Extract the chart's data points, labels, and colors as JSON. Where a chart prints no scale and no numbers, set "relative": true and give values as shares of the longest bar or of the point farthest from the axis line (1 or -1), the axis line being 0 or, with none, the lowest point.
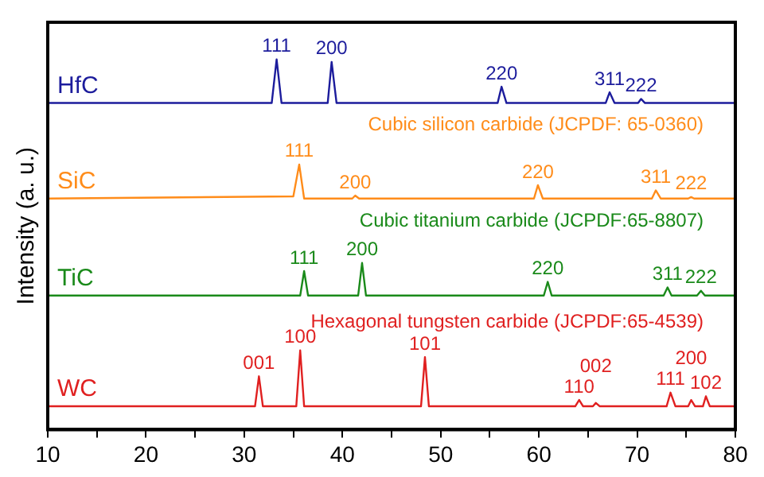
{
  "chart_data": {
    "type": "line",
    "relative": true,
    "ylabel": "Intensity (a. u.)",
    "xlim": [
      10,
      80
    ],
    "xticks": [
      10,
      {
        "value": 15,
        "label": null
      },
      20,
      {
        "value": 25,
        "label": null
      },
      30,
      {
        "value": 35,
        "label": null
      },
      40,
      {
        "value": 45,
        "label": null
      },
      50,
      {
        "value": 55,
        "label": null
      },
      60,
      {
        "value": 65,
        "label": null
      },
      70,
      {
        "value": 75,
        "label": null
      },
      80
    ],
    "marker": "none",
    "line_style": "solid",
    "series": [
      {
        "name": "HfC",
        "color": "#1c1c9c",
        "x": [
          10,
          32.8,
          33.3,
          33.8,
          38.5,
          38.9,
          39.4,
          55.8,
          56.2,
          56.7,
          66.8,
          67.2,
          67.7,
          70.1,
          70.4,
          70.8,
          80
        ],
        "values": [
          0.882,
          0.882,
          1.0,
          0.882,
          0.882,
          0.993,
          0.882,
          0.882,
          0.926,
          0.882,
          0.882,
          0.911,
          0.882,
          0.882,
          0.893,
          0.882,
          0.882
        ]
      },
      {
        "name": "SiC",
        "color": "#ff8c1a",
        "x": [
          10,
          35.0,
          35.6,
          36.1,
          41.0,
          41.3,
          41.7,
          59.5,
          59.9,
          60.4,
          71.5,
          71.9,
          72.4,
          75.2,
          75.5,
          75.8,
          80
        ],
        "values": [
          0.624,
          0.63,
          0.716,
          0.624,
          0.624,
          0.632,
          0.624,
          0.624,
          0.66,
          0.624,
          0.624,
          0.646,
          0.624,
          0.624,
          0.628,
          0.624,
          0.624
        ]
      },
      {
        "name": "TiC",
        "color": "#1a8a1a",
        "x": [
          10,
          35.7,
          36.1,
          36.5,
          41.6,
          42.0,
          42.4,
          60.5,
          60.9,
          61.3,
          72.7,
          73.1,
          73.5,
          76.1,
          76.5,
          76.9,
          80
        ],
        "values": [
          0.362,
          0.362,
          0.428,
          0.362,
          0.362,
          0.45,
          0.362,
          0.362,
          0.399,
          0.362,
          0.362,
          0.384,
          0.362,
          0.362,
          0.375,
          0.362,
          0.362
        ]
      },
      {
        "name": "WC",
        "color": "#e02020",
        "x": [
          10,
          31.1,
          31.5,
          31.9,
          35.3,
          35.7,
          36.1,
          48.0,
          48.4,
          48.8,
          63.7,
          64.1,
          64.5,
          65.5,
          65.8,
          66.2,
          73.0,
          73.4,
          73.9,
          75.2,
          75.5,
          75.9,
          76.7,
          77.0,
          77.4,
          80
        ],
        "values": [
          0.063,
          0.063,
          0.144,
          0.063,
          0.063,
          0.214,
          0.063,
          0.063,
          0.196,
          0.063,
          0.063,
          0.08,
          0.063,
          0.063,
          0.072,
          0.063,
          0.063,
          0.1,
          0.063,
          0.063,
          0.08,
          0.063,
          0.063,
          0.09,
          0.063,
          0.063
        ]
      }
    ],
    "annotations": [
      {
        "text": "111",
        "x": 33.3,
        "y": 1.0
      },
      {
        "text": "200",
        "x": 38.9,
        "y": 0.993
      },
      {
        "text": "220",
        "x": 56.2,
        "y": 0.926
      },
      {
        "text": "311",
        "x": 67.2,
        "y": 0.911
      },
      {
        "text": "222",
        "x": 70.4,
        "y": 0.893
      },
      "Cubic silicon carbide (JCPDF: 65-0360)",
      {
        "text": "111",
        "x": 35.6,
        "y": 0.716
      },
      {
        "text": "200",
        "x": 41.3,
        "y": 0.632
      },
      {
        "text": "220",
        "x": 59.9,
        "y": 0.66
      },
      {
        "text": "311",
        "x": 71.9,
        "y": 0.646
      },
      {
        "text": "222",
        "x": 75.5,
        "y": 0.628
      },
      "Cubic titanium carbide (JCPDF:65-8807)",
      {
        "text": "111",
        "x": 36.1,
        "y": 0.428
      },
      {
        "text": "200",
        "x": 42.0,
        "y": 0.45
      },
      {
        "text": "220",
        "x": 60.9,
        "y": 0.399
      },
      {
        "text": "311",
        "x": 73.1,
        "y": 0.384
      },
      {
        "text": "222",
        "x": 76.5,
        "y": 0.375
      },
      "Hexagonal tungsten carbide (JCPDF:65-4539)",
      {
        "text": "001",
        "x": 31.5,
        "y": 0.144
      },
      {
        "text": "100",
        "x": 35.7,
        "y": 0.214
      },
      {
        "text": "101",
        "x": 48.4,
        "y": 0.196
      },
      {
        "text": "110",
        "x": 64.1,
        "y": 0.08
      },
      {
        "text": "002",
        "x": 65.8,
        "y": 0.072
      },
      {
        "text": "111",
        "x": 73.4,
        "y": 0.1
      },
      {
        "text": "200",
        "x": 75.5,
        "y": 0.08
      },
      {
        "text": "102",
        "x": 77.0,
        "y": 0.09
      }
    ]
  }
}
